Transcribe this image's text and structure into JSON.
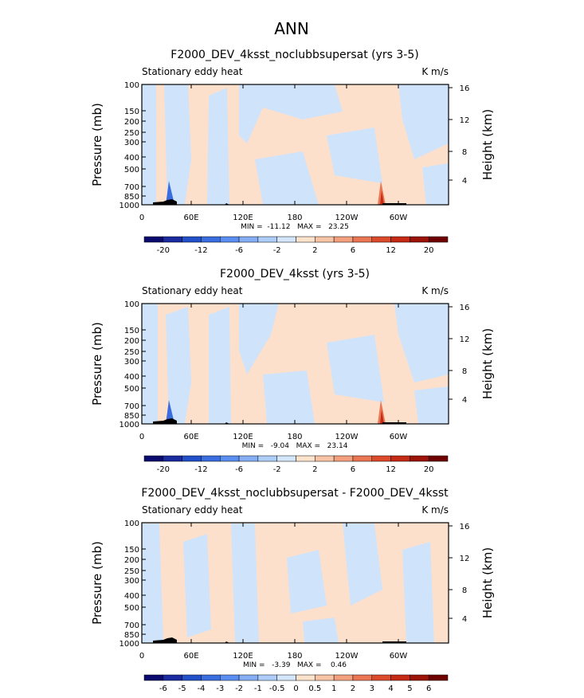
{
  "title": "ANN",
  "colorbar_colors": [
    "#0a0a6e",
    "#1a2a9f",
    "#2250c8",
    "#3a6ee0",
    "#5a8ef0",
    "#86aef5",
    "#aecdf8",
    "#d3e6fb",
    "#fde2cc",
    "#f8c4a6",
    "#f2a07e",
    "#ea7654",
    "#dc4a2c",
    "#c42a14",
    "#9c1408",
    "#6e0000"
  ],
  "panels": [
    {
      "title": "F2000_DEV_4ksst_noclubbsupersat (yrs 3-5)",
      "left_label": "Stationary eddy heat",
      "right_label": "K m/s",
      "y_axis_label": "Pressure (mb)",
      "y2_axis_label": "Height (km)",
      "pressure_ticks": [
        100,
        150,
        200,
        250,
        300,
        400,
        500,
        700,
        850,
        1000
      ],
      "height_ticks": [
        16,
        12,
        8,
        4
      ],
      "x_ticks": [
        "0",
        "60E",
        "120E",
        "180",
        "120W",
        "60W"
      ],
      "stats": "MIN =  -11.12   MAX =   23.25",
      "colorbar_labels": [
        -20,
        -12,
        -6,
        -2,
        2,
        6,
        12,
        20
      ]
    },
    {
      "title": "F2000_DEV_4ksst (yrs 3-5)",
      "left_label": "Stationary eddy heat",
      "right_label": "K m/s",
      "y_axis_label": "Pressure (mb)",
      "y2_axis_label": "Height (km)",
      "pressure_ticks": [
        100,
        150,
        200,
        250,
        300,
        400,
        500,
        700,
        850,
        1000
      ],
      "height_ticks": [
        16,
        12,
        8,
        4
      ],
      "x_ticks": [
        "0",
        "60E",
        "120E",
        "180",
        "120W",
        "60W"
      ],
      "stats": "MIN =   -9.04   MAX =   23.14",
      "colorbar_labels": [
        -20,
        -12,
        -6,
        -2,
        2,
        6,
        12,
        20
      ]
    },
    {
      "title": "F2000_DEV_4ksst_noclubbsupersat - F2000_DEV_4ksst",
      "left_label": "Stationary eddy heat",
      "right_label": "K m/s",
      "y_axis_label": "Pressure (mb)",
      "y2_axis_label": "Height (km)",
      "pressure_ticks": [
        100,
        150,
        200,
        250,
        300,
        400,
        500,
        700,
        850,
        1000
      ],
      "height_ticks": [
        16,
        12,
        8,
        4
      ],
      "x_ticks": [
        "0",
        "60E",
        "120E",
        "180",
        "120W",
        "60W"
      ],
      "stats": "MIN =   -3.39   MAX =    0.46",
      "colorbar_labels": [
        -6,
        -5,
        -4,
        -3,
        -2,
        -1,
        -0.5,
        0,
        0.5,
        1,
        2,
        3,
        4,
        5,
        6
      ]
    }
  ]
}
